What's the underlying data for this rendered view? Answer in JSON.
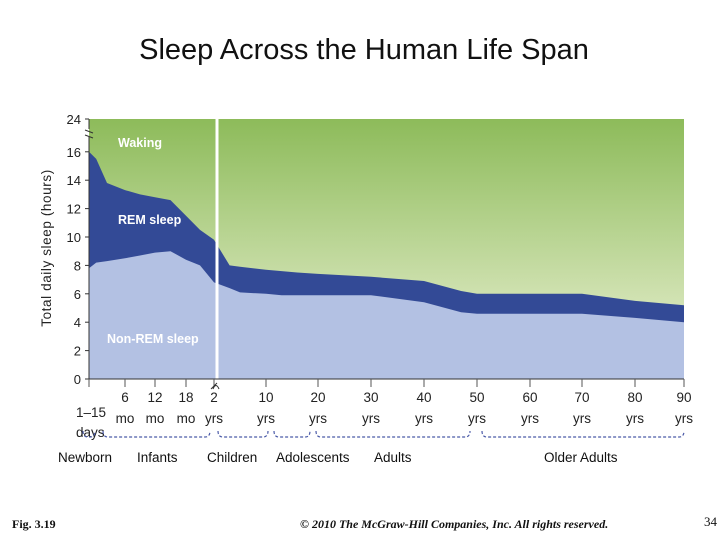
{
  "slide": {
    "title": "Sleep Across the Human Life Span",
    "figure_label": "Fig. 3.19",
    "copyright": "© 2010 The McGraw-Hill Companies, Inc. All rights reserved.",
    "page_number": "34"
  },
  "chart_data": {
    "type": "area",
    "title": "Sleep Across the Human Life Span",
    "ylabel": "Total daily sleep (hours)",
    "ylim": [
      0,
      24
    ],
    "y_ticks": [
      0,
      2,
      4,
      6,
      8,
      10,
      12,
      14,
      16,
      24
    ],
    "y_axis_break": "between 16 and 24",
    "x_ticks": [
      {
        "top": "1–15",
        "bottom": "days"
      },
      {
        "top": "6",
        "bottom": "mo"
      },
      {
        "top": "12",
        "bottom": "mo"
      },
      {
        "top": "18",
        "bottom": "mo"
      },
      {
        "top": "2",
        "bottom": "yrs"
      },
      {
        "top": "10",
        "bottom": "yrs"
      },
      {
        "top": "20",
        "bottom": "yrs"
      },
      {
        "top": "30",
        "bottom": "yrs"
      },
      {
        "top": "40",
        "bottom": "yrs"
      },
      {
        "top": "50",
        "bottom": "yrs"
      },
      {
        "top": "60",
        "bottom": "yrs"
      },
      {
        "top": "70",
        "bottom": "yrs"
      },
      {
        "top": "80",
        "bottom": "yrs"
      },
      {
        "top": "90",
        "bottom": "yrs"
      }
    ],
    "x_axis_break": "between 18 mo and 2 yrs",
    "age_groups": [
      "Newborn",
      "Infants",
      "Children",
      "Adolescents",
      "Adults",
      "Older Adults"
    ],
    "series": [
      {
        "name": "Waking",
        "color": "#9dc46a"
      },
      {
        "name": "REM sleep",
        "color": "#334a96"
      },
      {
        "name": "Non-REM sleep",
        "color": "#b3c1e3"
      }
    ],
    "profile_x": [
      0,
      0.2,
      0.5,
      1,
      1.5,
      2,
      2.5,
      3,
      3.5,
      4.0,
      4.3,
      4.5,
      5,
      5.3,
      5.6,
      6,
      7,
      8,
      8.7,
      9,
      10,
      11,
      12,
      13
    ],
    "total_sleep": [
      16,
      15.5,
      13.8,
      13.3,
      13,
      12.8,
      12.6,
      11.5,
      10.5,
      9.8,
      8,
      7.9,
      7.7,
      7.6,
      7.5,
      7.4,
      7.2,
      6.9,
      6.2,
      6,
      6,
      6,
      5.5,
      5.2
    ],
    "non_rem_sleep": [
      7.8,
      8.2,
      8.3,
      8.5,
      8.7,
      8.9,
      9,
      8.4,
      8,
      6.8,
      6.4,
      6.1,
      6,
      5.9,
      5.9,
      5.9,
      5.9,
      5.4,
      4.7,
      4.6,
      4.6,
      4.6,
      4.3,
      4.0
    ]
  }
}
